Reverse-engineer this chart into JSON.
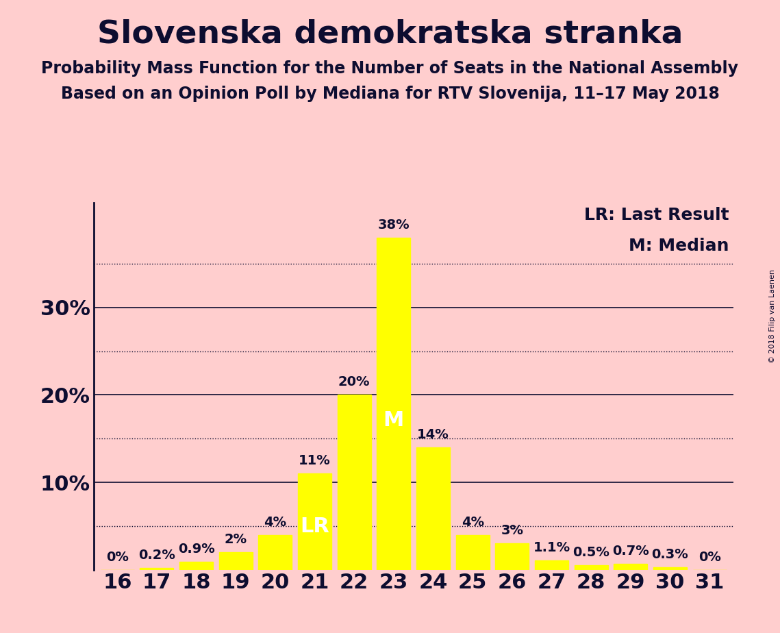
{
  "title": "Slovenska demokratska stranka",
  "subtitle1": "Probability Mass Function for the Number of Seats in the National Assembly",
  "subtitle2": "Based on an Opinion Poll by Mediana for RTV Slovenija, 11–17 May 2018",
  "copyright": "© 2018 Filip van Laenen",
  "seats": [
    16,
    17,
    18,
    19,
    20,
    21,
    22,
    23,
    24,
    25,
    26,
    27,
    28,
    29,
    30,
    31
  ],
  "values": [
    0.0,
    0.2,
    0.9,
    2.0,
    4.0,
    11.0,
    20.0,
    38.0,
    14.0,
    4.0,
    3.0,
    1.1,
    0.5,
    0.7,
    0.3,
    0.0
  ],
  "labels": [
    "0%",
    "0.2%",
    "0.9%",
    "2%",
    "4%",
    "11%",
    "20%",
    "38%",
    "14%",
    "4%",
    "3%",
    "1.1%",
    "0.5%",
    "0.7%",
    "0.3%",
    "0%"
  ],
  "bar_color": "#FFFF00",
  "background_color": "#FFCECE",
  "text_color": "#0D0D30",
  "lr_seat": 21,
  "median_seat": 23,
  "lr_label": "LR",
  "median_label": "M",
  "legend_lr": "LR: Last Result",
  "legend_m": "M: Median",
  "ylim": [
    0,
    42
  ],
  "yticks": [
    10,
    20,
    30
  ],
  "ytick_labels": [
    "10%",
    "20%",
    "30%"
  ],
  "dotted_lines": [
    5,
    15,
    25,
    35
  ],
  "title_fontsize": 34,
  "subtitle_fontsize": 17,
  "axis_label_fontsize": 22,
  "bar_label_fontsize": 14,
  "legend_fontsize": 18,
  "inside_label_fontsize": 22,
  "copyright_fontsize": 8
}
